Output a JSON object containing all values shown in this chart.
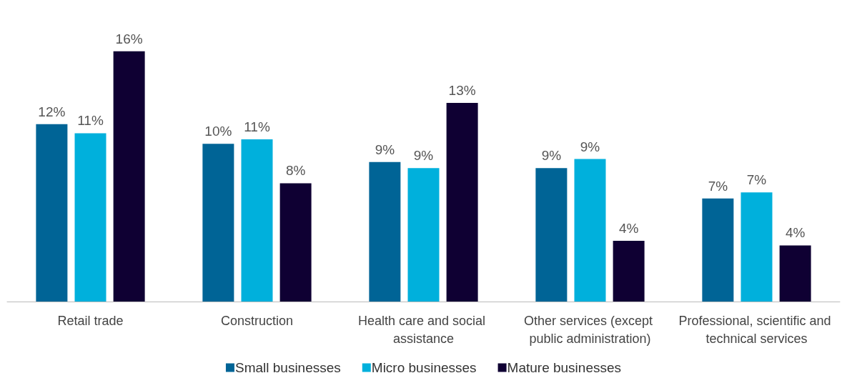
{
  "chart_data": {
    "type": "bar",
    "categories": [
      "Retail trade",
      "Construction",
      "Health care and social assistance",
      "Other services (except public administration)",
      "Professional, scientific and technical services"
    ],
    "series": [
      {
        "name": "Small businesses",
        "color": "#006496",
        "values": [
          11.7,
          10.4,
          9.2,
          8.8,
          6.8
        ],
        "value_labels": [
          "12%",
          "10%",
          "9%",
          "9%",
          "7%"
        ]
      },
      {
        "name": "Micro businesses",
        "color": "#00b0dc",
        "values": [
          11.1,
          10.7,
          8.8,
          9.4,
          7.2
        ],
        "value_labels": [
          "11%",
          "11%",
          "9%",
          "9%",
          "7%"
        ]
      },
      {
        "name": "Mature businesses",
        "color": "#0f0033",
        "values": [
          16.5,
          7.8,
          13.1,
          4.0,
          3.7
        ],
        "value_labels": [
          "16%",
          "8%",
          "13%",
          "4%",
          "4%"
        ]
      }
    ],
    "legend": "bottom"
  }
}
